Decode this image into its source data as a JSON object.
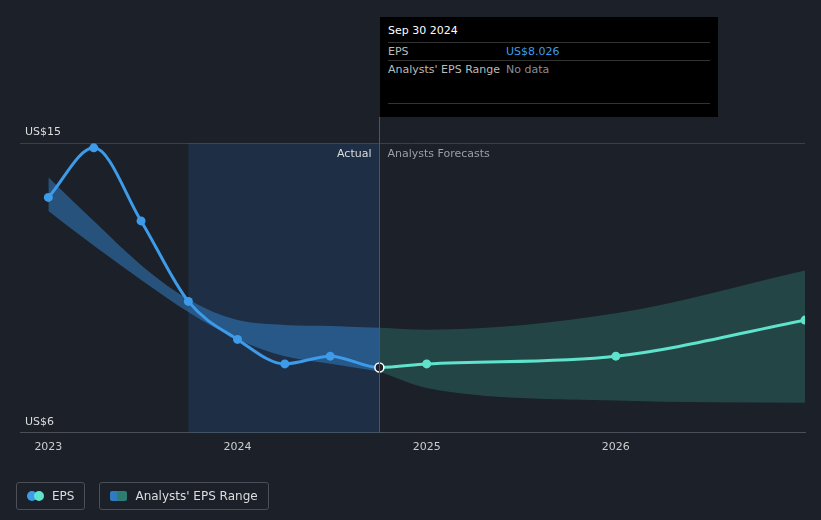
{
  "chart_data": {
    "type": "line",
    "xlim": [
      2022.85,
      2027
    ],
    "xticks": [
      2023,
      2024,
      2025,
      2026
    ],
    "ylim": [
      6,
      15
    ],
    "yticks": [
      {
        "value": 6,
        "label": "US$6"
      },
      {
        "value": 15,
        "label": "US$15"
      }
    ],
    "grid": true,
    "legend": "bottom left",
    "highlight": [
      2023.74,
      2024.75
    ],
    "divider": {
      "x": 2024.75,
      "labels": [
        "Actual",
        "Analysts Forecasts"
      ]
    },
    "tooltip": {
      "title": "Sep 30 2024",
      "rows": [
        {
          "label": "EPS",
          "value": "US$8.026"
        },
        {
          "label": "Analysts' EPS Range",
          "value": "No data"
        }
      ]
    },
    "series": [
      {
        "name": "EPS",
        "type": "line",
        "marker": "circle",
        "x": [
          2023.0,
          2023.24,
          2023.49,
          2023.74,
          2024.0,
          2024.25,
          2024.49,
          2024.75,
          2025.0,
          2026.0,
          2027.0
        ],
        "values": [
          13.31,
          14.85,
          12.58,
          10.08,
          8.9,
          8.14,
          8.38,
          8.026,
          8.14,
          8.38,
          9.5
        ],
        "colors": [
          "#3d9be9",
          "#3d9be9",
          "#3d9be9",
          "#3d9be9",
          "#3d9be9",
          "#3d9be9",
          "#3d9be9",
          "#3d9be9",
          "#5fe3cc",
          "#5fe3cc",
          "#5fe3cc"
        ]
      },
      {
        "name": "Analysts' EPS Range",
        "type": "area",
        "x": [
          2023.0,
          2023.25,
          2023.5,
          2023.75,
          2024.0,
          2024.25,
          2024.5,
          2024.75,
          2025.0,
          2026.0,
          2027.0
        ],
        "low": [
          12.89,
          11.77,
          10.71,
          9.71,
          8.9,
          8.38,
          8.14,
          7.9,
          7.39,
          7.0,
          6.93
        ],
        "high": [
          13.94,
          12.52,
          11.16,
          10.11,
          9.5,
          9.35,
          9.32,
          9.26,
          9.2,
          9.71,
          11.04
        ],
        "colors": [
          "#2f7bc0",
          "#2f7bc0",
          "#2f7bc0",
          "#2f7bc0",
          "#2f7bc0",
          "#2f7bc0",
          "#2f7bc0",
          "#2f7bc0",
          "#2f7d72",
          "#2f7d72",
          "#2f7d72"
        ]
      }
    ]
  }
}
